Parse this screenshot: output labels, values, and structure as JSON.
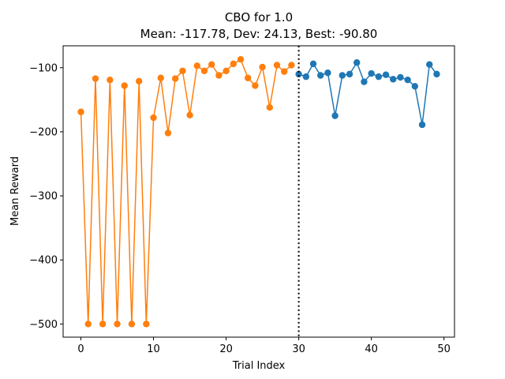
{
  "chart_data": {
    "type": "line",
    "title": "CBO for 1.0",
    "subtitle": "Mean: -117.78, Dev: 24.13, Best: -90.80",
    "xlabel": "Trial Index",
    "ylabel": "Mean Reward",
    "xlim": [
      -2.45,
      51.45
    ],
    "ylim": [
      -520.5,
      -65.8
    ],
    "xticks": [
      0,
      10,
      20,
      30,
      40,
      50
    ],
    "yticks": [
      -500,
      -400,
      -300,
      -200,
      -100
    ],
    "xtick_labels": [
      "0",
      "10",
      "20",
      "30",
      "40",
      "50"
    ],
    "ytick_labels": [
      "−500",
      "−400",
      "−300",
      "−200",
      "−100"
    ],
    "grid": false,
    "vline": {
      "x": 30,
      "style": "dotted",
      "color": "#000000"
    },
    "series": [
      {
        "color": "#ff7f0e",
        "x": [
          0,
          1,
          2,
          3,
          4,
          5,
          6,
          7,
          8,
          9,
          10,
          11,
          12,
          13,
          14,
          15,
          16,
          17,
          18,
          19,
          20,
          21,
          22,
          23,
          24,
          25,
          26,
          27,
          28,
          29
        ],
        "y": [
          -169,
          -500,
          -117,
          -500,
          -119,
          -500,
          -128,
          -500,
          -121,
          -500,
          -178,
          -116,
          -202,
          -117,
          -105,
          -174,
          -97,
          -105,
          -95,
          -112,
          -105,
          -94,
          -87,
          -116,
          -128,
          -99,
          -162,
          -96,
          -106,
          -96
        ]
      },
      {
        "color": "#1f77b4",
        "x": [
          30,
          31,
          32,
          33,
          34,
          35,
          36,
          37,
          38,
          39,
          40,
          41,
          42,
          43,
          44,
          45,
          46,
          47,
          48,
          49
        ],
        "y": [
          -110,
          -114,
          -94,
          -112,
          -108,
          -175,
          -112,
          -110,
          -92,
          -122,
          -109,
          -114,
          -111,
          -118,
          -115,
          -119,
          -129,
          -189,
          -95,
          -110
        ]
      }
    ]
  }
}
